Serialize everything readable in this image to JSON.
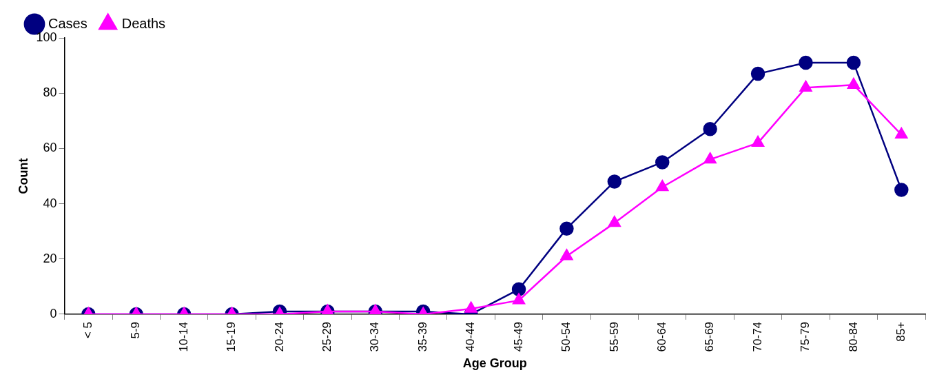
{
  "chart_data": {
    "type": "line",
    "xlabel": "Age Group",
    "ylabel": "Count",
    "categories": [
      "< 5",
      "5-9",
      "10-14",
      "15-19",
      "20-24",
      "25-29",
      "30-34",
      "35-39",
      "40-44",
      "45-49",
      "50-54",
      "55-59",
      "60-64",
      "65-69",
      "70-74",
      "75-79",
      "80-84",
      "85+"
    ],
    "series": [
      {
        "name": "Cases",
        "color": "#000080",
        "marker": "circle",
        "values": [
          0,
          0,
          0,
          0,
          1,
          1,
          1,
          1,
          0,
          9,
          31,
          48,
          55,
          67,
          87,
          91,
          91,
          45
        ]
      },
      {
        "name": "Deaths",
        "color": "#ff00ff",
        "marker": "triangle",
        "values": [
          0,
          0,
          0,
          0,
          0,
          1,
          1,
          0,
          2,
          5,
          21,
          33,
          46,
          56,
          62,
          82,
          83,
          65
        ]
      }
    ],
    "ylim": [
      0,
      100
    ],
    "yticks": [
      0,
      20,
      40,
      60,
      80,
      100
    ],
    "grid": false,
    "legend": "top left",
    "line_style": "solid"
  }
}
